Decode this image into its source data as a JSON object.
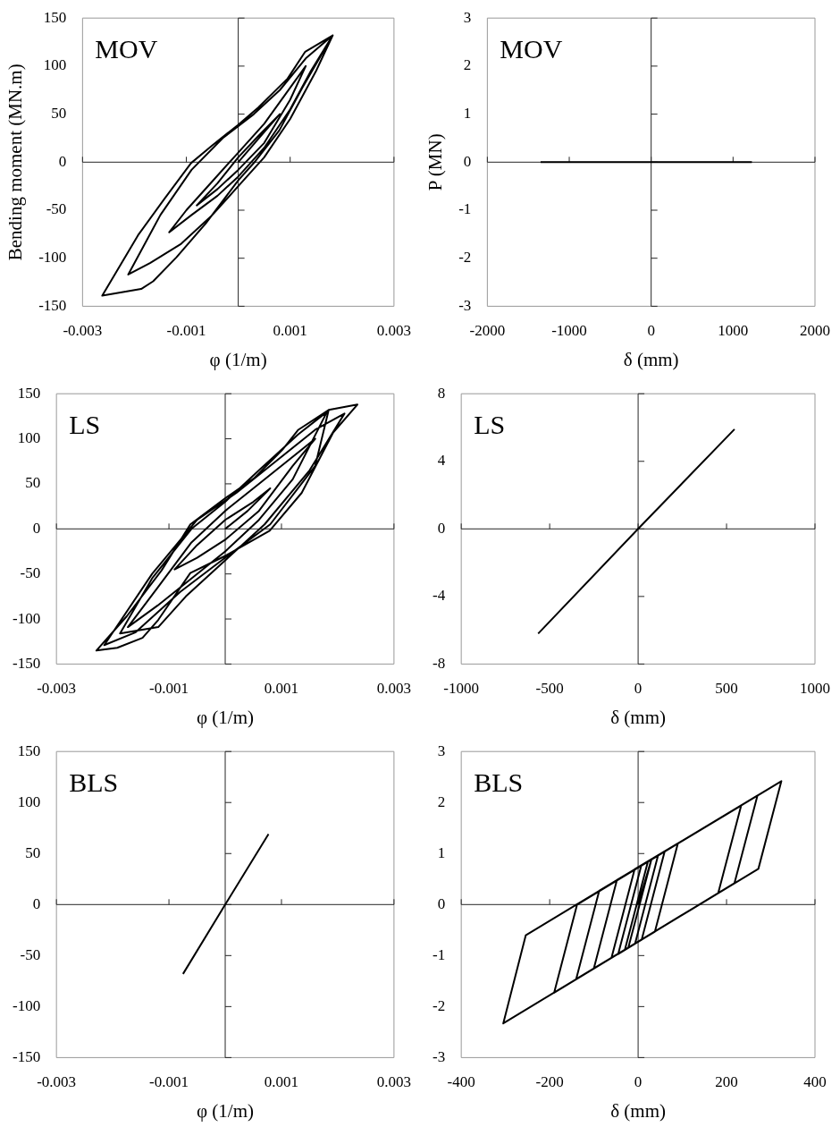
{
  "chart_data": [
    {
      "type": "line",
      "annotations": [
        "MOV"
      ],
      "xlabel": "φ (1/m)",
      "ylabel": "Bending moment (MN.m)",
      "xlim": [
        -0.003,
        0.003
      ],
      "xticks": [
        -0.003,
        -0.001,
        0.001,
        0.003
      ],
      "ylim": [
        -150,
        150
      ],
      "yticks": [
        -150,
        -100,
        -50,
        0,
        50,
        100,
        150
      ],
      "color": "#000000",
      "x": [
        0,
        0.0004,
        0.0008,
        0.0004,
        0,
        -0.0004,
        -0.0008,
        -0.0004,
        0,
        0.0005,
        0.001,
        0.0013,
        0.0009,
        0.0005,
        0,
        -0.0005,
        -0.001,
        -0.00133,
        -0.0009,
        -0.0004,
        0,
        0.0005,
        0.001,
        0.0014,
        0.00182,
        0.0013,
        0.0008,
        0.0003,
        -0.0003,
        -0.0009,
        -0.0015,
        -0.00212,
        -0.0017,
        -0.0011,
        -0.0005,
        0,
        0.0005,
        0.001,
        0.0015,
        0.00182,
        0.00129,
        0.00095,
        0.00039,
        0,
        -0.00051,
        -0.00091,
        -0.00142,
        -0.00193,
        -0.00262,
        -0.00187,
        -0.00164,
        -0.00119,
        -0.00063,
        0,
        0.00033,
        0.00079,
        0.00124,
        0.00182
      ],
      "values": [
        0,
        25,
        50,
        28,
        5,
        -22,
        -45,
        -28,
        -8,
        20,
        65,
        100,
        70,
        40,
        10,
        -20,
        -50,
        -73,
        -55,
        -35,
        -15,
        15,
        55,
        95,
        132,
        108,
        75,
        50,
        25,
        -8,
        -55,
        -117,
        -105,
        -85,
        -55,
        -25,
        5,
        45,
        95,
        132,
        115,
        87,
        57,
        39,
        17,
        -1,
        -38,
        -76,
        -139,
        -132,
        -124,
        -99,
        -64,
        -19,
        1,
        33,
        78,
        132
      ]
    },
    {
      "type": "line",
      "annotations": [
        "MOV"
      ],
      "xlabel": "δ (mm)",
      "ylabel": "P (MN)",
      "xlim": [
        -2000,
        2000
      ],
      "xticks": [
        -2000,
        -1000,
        0,
        1000,
        2000
      ],
      "ylim": [
        -3,
        3
      ],
      "yticks": [
        -3,
        -2,
        -1,
        0,
        1,
        2,
        3
      ],
      "color": "#000000",
      "x": [
        -1350,
        1230
      ],
      "values": [
        0,
        0
      ]
    },
    {
      "type": "line",
      "annotations": [
        "LS"
      ],
      "xlabel": "φ (1/m)",
      "xlim": [
        -0.003,
        0.003
      ],
      "xticks": [
        -0.003,
        -0.001,
        0.001,
        0.003
      ],
      "ylim": [
        -150,
        150
      ],
      "yticks": [
        -150,
        -100,
        -50,
        0,
        50,
        100,
        150
      ],
      "color": "#000000",
      "x": [
        0,
        0.0004,
        0.0008,
        0.0005,
        0,
        -0.0005,
        -0.0009,
        -0.0005,
        0,
        0.0006,
        0.0012,
        0.0016,
        0.0011,
        0.0005,
        0,
        -0.0006,
        -0.0012,
        -0.00173,
        -0.0012,
        -0.0006,
        0,
        0.0006,
        0.0012,
        0.00181,
        0.0013,
        0.0006,
        0,
        -0.0006,
        -0.0013,
        -0.00187,
        -0.00119,
        -0.0007,
        0,
        0.0007,
        0.0015,
        0.00212,
        0.0016,
        0.0009,
        0.0002,
        -0.0005,
        -0.0013,
        -0.00215,
        -0.0016,
        -0.0008,
        0,
        0.0008,
        0.0016,
        0.00184,
        0.00235,
        0.00192,
        0.00136,
        0.00079,
        0,
        -0.00062,
        -0.00119,
        -0.00147,
        -0.00192,
        -0.00229,
        -0.00175,
        -0.00113,
        -0.00062,
        0,
        0.00051,
        0.00102,
        0.0013,
        0.00184
      ],
      "values": [
        0,
        20,
        45,
        30,
        10,
        -18,
        -45,
        -32,
        -12,
        20,
        70,
        100,
        75,
        45,
        20,
        -15,
        -65,
        -109,
        -85,
        -55,
        -25,
        10,
        55,
        130,
        105,
        65,
        30,
        0,
        -55,
        -116,
        -109,
        -75,
        -35,
        5,
        65,
        128,
        110,
        75,
        40,
        10,
        -50,
        -129,
        -115,
        -70,
        -32,
        5,
        70,
        132,
        138,
        107,
        40,
        -2,
        -30,
        -49,
        -101,
        -121,
        -132,
        -135,
        -97,
        -46,
        5,
        34,
        56,
        88,
        110,
        132
      ]
    },
    {
      "type": "line",
      "annotations": [
        "LS"
      ],
      "xlabel": "δ (mm)",
      "xlim": [
        -1000,
        1000
      ],
      "xticks": [
        -1000,
        -500,
        0,
        500,
        1000
      ],
      "ylim": [
        -8,
        8
      ],
      "yticks": [
        -8,
        -4,
        0,
        4,
        8
      ],
      "color": "#000000",
      "x": [
        -565,
        0,
        545
      ],
      "values": [
        -6.2,
        0,
        5.9
      ]
    },
    {
      "type": "line",
      "annotations": [
        "BLS"
      ],
      "xlabel": "φ (1/m)",
      "xlim": [
        -0.003,
        0.003
      ],
      "xticks": [
        -0.003,
        -0.001,
        0.001,
        0.003
      ],
      "ylim": [
        -150,
        150
      ],
      "yticks": [
        -150,
        -100,
        -50,
        0,
        50,
        100,
        150
      ],
      "color": "#000000",
      "x": [
        -0.00075,
        0,
        0.00077
      ],
      "values": [
        -68,
        0,
        69
      ]
    },
    {
      "type": "line",
      "annotations": [
        "BLS"
      ],
      "xlabel": "δ (mm)",
      "xlim": [
        -400,
        400
      ],
      "xticks": [
        -400,
        -200,
        0,
        200,
        400
      ],
      "ylim": [
        -3,
        3
      ],
      "yticks": [
        -3,
        -2,
        -1,
        0,
        1,
        2,
        3
      ],
      "color": "#000000",
      "x": [
        0,
        30,
        -22,
        -30,
        22,
        45,
        -7,
        -45,
        7,
        60,
        8,
        -60,
        -8,
        90,
        38,
        -100,
        -48,
        233,
        181,
        -140,
        -88,
        270,
        218,
        -190,
        -138,
        324,
        272,
        -305,
        -254,
        324
      ],
      "values": [
        0,
        0.88,
        -0.84,
        -0.89,
        0.84,
        0.96,
        -0.77,
        -0.97,
        0.76,
        1.04,
        -0.69,
        -1.04,
        0.69,
        1.2,
        -0.53,
        -1.25,
        0.48,
        1.94,
        0.22,
        -1.46,
        0.27,
        2.14,
        0.42,
        -1.73,
        0,
        2.42,
        0.7,
        -2.33,
        -0.6,
        2.42
      ]
    }
  ]
}
